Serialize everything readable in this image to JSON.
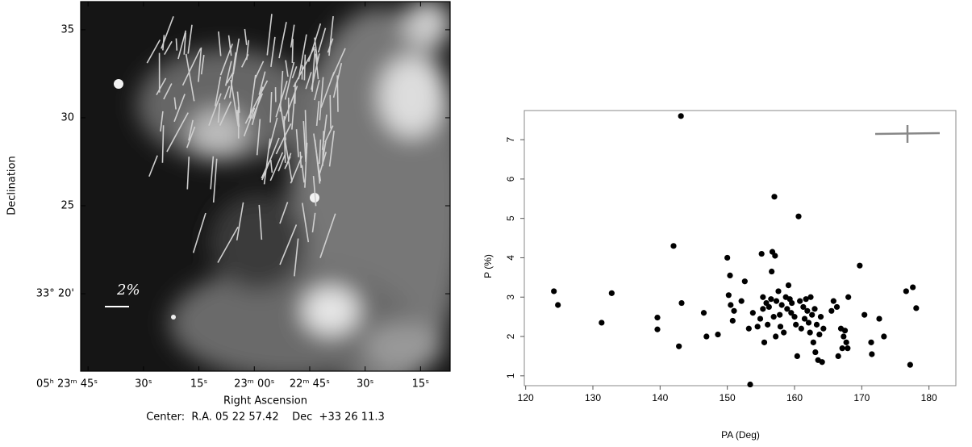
{
  "chart_data": [
    {
      "type": "image",
      "xlabel": "Right Ascension",
      "ylabel": "Declination",
      "caption": "Center:  R.A. 05 22 57.42    Dec  +33 26 11.3",
      "scale_label": "2%",
      "xlim": [
        107,
        7
      ],
      "ylim": [
        15.6,
        36.6
      ],
      "xticks": [
        {
          "value": 105,
          "label": "05ʰ 23ᵐ 45ˢ"
        },
        {
          "value": 90,
          "label": "30ˢ"
        },
        {
          "value": 75,
          "label": "15ˢ"
        },
        {
          "value": 60,
          "label": "23ᵐ 00ˢ"
        },
        {
          "value": 45,
          "label": "22ᵐ 45ˢ"
        },
        {
          "value": 30,
          "label": "30ˢ"
        },
        {
          "value": 15,
          "label": "15ˢ"
        }
      ],
      "yticks": [
        35,
        30,
        25,
        {
          "value": 20,
          "label": "33° 20'"
        }
      ]
    },
    {
      "type": "scatter",
      "xlabel": "PA (Deg)",
      "ylabel": "P (%)",
      "color": "#000000",
      "xlim": [
        119.8,
        184
      ],
      "ylim": [
        0.75,
        7.74
      ],
      "xticks": [
        120,
        130,
        140,
        150,
        160,
        170,
        180
      ],
      "yticks": [
        1,
        2,
        3,
        4,
        5,
        6,
        7
      ],
      "x": [
        124.2,
        124.8,
        131.3,
        132.8,
        139.6,
        139.6,
        142,
        142.8,
        143.2,
        143.1,
        146.5,
        146.9,
        148.6,
        150,
        150.2,
        150.4,
        150.5,
        150.8,
        151,
        152.1,
        152.6,
        153.2,
        153.4,
        153.8,
        154.5,
        154.9,
        155.1,
        155.3,
        155.3,
        155.5,
        155.8,
        156,
        156.2,
        156.5,
        156.6,
        156.7,
        156.9,
        157,
        157.1,
        157.2,
        157.3,
        157.6,
        157.8,
        157.9,
        158.1,
        158.4,
        158.7,
        158.9,
        159.1,
        159.3,
        159.5,
        159.6,
        160,
        160.2,
        160.4,
        160.6,
        160.8,
        161,
        161.3,
        161.5,
        161.7,
        161.9,
        162.1,
        162.3,
        162.4,
        162.6,
        162.8,
        163,
        163.1,
        163.3,
        163.5,
        163.7,
        163.9,
        164.1,
        164.3,
        165.5,
        165.8,
        166.3,
        166.5,
        166.9,
        167.1,
        167.3,
        167.5,
        167.7,
        167.9,
        168,
        169.7,
        170.4,
        171.4,
        171.5,
        172.6,
        173.3,
        176.6,
        177.2,
        177.6,
        178.1
      ],
      "values": [
        3.15,
        2.8,
        2.35,
        3.1,
        2.48,
        2.18,
        4.3,
        1.75,
        2.85,
        7.6,
        2.6,
        2.0,
        2.05,
        4.0,
        3.05,
        3.55,
        2.8,
        2.4,
        2.65,
        2.9,
        3.4,
        2.2,
        0.78,
        2.6,
        2.25,
        2.45,
        4.1,
        2.7,
        3.0,
        1.85,
        2.85,
        2.3,
        2.75,
        2.95,
        3.65,
        4.15,
        2.5,
        5.55,
        4.05,
        2.0,
        2.9,
        3.15,
        2.55,
        2.25,
        2.8,
        2.1,
        3.0,
        2.7,
        3.3,
        2.95,
        2.6,
        2.85,
        2.5,
        2.3,
        1.5,
        5.05,
        2.9,
        2.2,
        2.75,
        2.45,
        2.95,
        2.65,
        2.35,
        2.1,
        3.0,
        2.55,
        1.85,
        2.7,
        1.6,
        2.3,
        1.4,
        2.05,
        2.5,
        1.35,
        2.2,
        2.65,
        2.9,
        2.75,
        1.5,
        2.2,
        1.7,
        2.0,
        2.15,
        1.85,
        1.7,
        3.0,
        3.8,
        2.55,
        1.85,
        1.55,
        2.45,
        2.0,
        3.15,
        1.28,
        3.25,
        2.72
      ]
    }
  ]
}
